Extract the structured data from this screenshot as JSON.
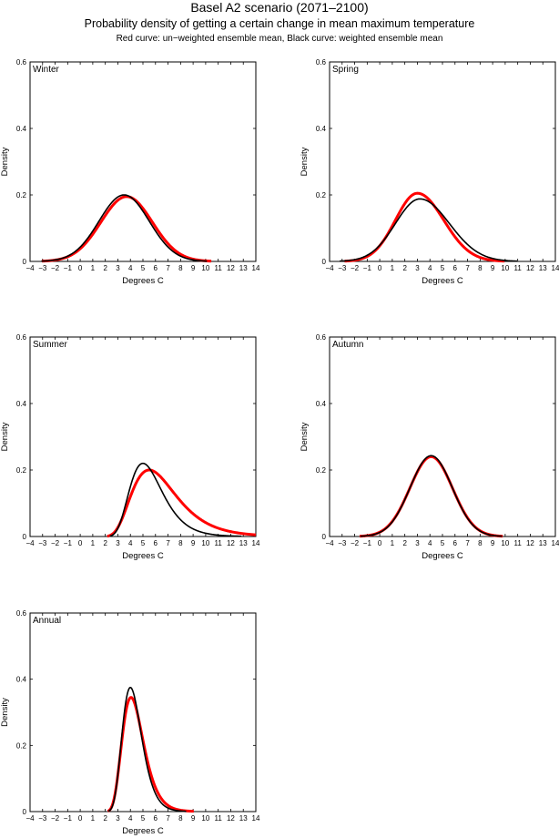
{
  "title": "Basel A2 scenario (2071–2100)",
  "subtitle": "Probability density of getting a certain change in mean maximum temperature",
  "legend_note": "Red curve: un−weighted ensemble mean, Black curve: weighted ensemble mean",
  "colors": {
    "unweighted": "#ff0000",
    "weighted": "#000000"
  },
  "chart_data": [
    {
      "type": "line",
      "label": "Winter",
      "xlabel": "Degrees C",
      "ylabel": "Density",
      "xlim": [
        -4,
        14
      ],
      "ylim": [
        0,
        0.6
      ],
      "xticks": [
        "−4",
        "−3",
        "−2",
        "−1",
        "0",
        "1",
        "2",
        "3",
        "4",
        "5",
        "6",
        "7",
        "8",
        "9",
        "10",
        "11",
        "12",
        "13",
        "14"
      ],
      "yticks": [
        "0",
        "0.2",
        "0.4",
        "0.6"
      ],
      "series": [
        {
          "name": "un-weighted ensemble mean",
          "color": "#ff0000",
          "dist": "normal",
          "mean": 3.7,
          "sd": 2.05,
          "peak": 0.195
        },
        {
          "name": "weighted ensemble mean",
          "color": "#000000",
          "dist": "normal",
          "mean": 3.5,
          "sd": 2.0,
          "peak": 0.2
        }
      ]
    },
    {
      "type": "line",
      "label": "Spring",
      "xlabel": "Degrees C",
      "ylabel": "Density",
      "xlim": [
        -4,
        14
      ],
      "ylim": [
        0,
        0.6
      ],
      "xticks": [
        "−4",
        "−3",
        "−2",
        "−1",
        "0",
        "1",
        "2",
        "3",
        "4",
        "5",
        "6",
        "7",
        "8",
        "9",
        "10",
        "11",
        "12",
        "13",
        "14"
      ],
      "yticks": [
        "0",
        "0.2",
        "0.4",
        "0.6"
      ],
      "series": [
        {
          "name": "un-weighted ensemble mean",
          "color": "#ff0000",
          "dist": "skew",
          "mode": 3.0,
          "sdl": 1.75,
          "sdr": 2.1,
          "peak": 0.205
        },
        {
          "name": "weighted ensemble mean",
          "color": "#000000",
          "dist": "skew",
          "mode": 3.2,
          "sdl": 1.95,
          "sdr": 2.35,
          "peak": 0.188
        }
      ]
    },
    {
      "type": "line",
      "label": "Summer",
      "xlabel": "Degrees C",
      "ylabel": "Density",
      "xlim": [
        -4,
        14
      ],
      "ylim": [
        0,
        0.6
      ],
      "xticks": [
        "−4",
        "−3",
        "−2",
        "−1",
        "0",
        "1",
        "2",
        "3",
        "4",
        "5",
        "6",
        "7",
        "8",
        "9",
        "10",
        "11",
        "12",
        "13",
        "14"
      ],
      "yticks": [
        "0",
        "0.2",
        "0.4",
        "0.6"
      ],
      "series": [
        {
          "name": "un-weighted ensemble mean",
          "color": "#ff0000",
          "dist": "lognormal",
          "mode": 5.5,
          "shift": 0.8,
          "sigma": 0.38,
          "peak": 0.2
        },
        {
          "name": "weighted ensemble mean",
          "color": "#000000",
          "dist": "lognormal",
          "mode": 5.0,
          "shift": 0.9,
          "sigma": 0.32,
          "peak": 0.22
        }
      ]
    },
    {
      "type": "line",
      "label": "Autumn",
      "xlabel": "Degrees C",
      "ylabel": "Density",
      "xlim": [
        -4,
        14
      ],
      "ylim": [
        0,
        0.6
      ],
      "xticks": [
        "−4",
        "−3",
        "−2",
        "−1",
        "0",
        "1",
        "2",
        "3",
        "4",
        "5",
        "6",
        "7",
        "8",
        "9",
        "10",
        "11",
        "12",
        "13",
        "14"
      ],
      "yticks": [
        "0",
        "0.2",
        "0.4",
        "0.6"
      ],
      "series": [
        {
          "name": "un-weighted ensemble mean",
          "color": "#ff0000",
          "dist": "normal",
          "mean": 4.1,
          "sd": 1.7,
          "peak": 0.24
        },
        {
          "name": "weighted ensemble mean",
          "color": "#000000",
          "dist": "normal",
          "mean": 4.1,
          "sd": 1.68,
          "peak": 0.243
        }
      ]
    },
    {
      "type": "line",
      "label": "Annual",
      "xlabel": "Degrees C",
      "ylabel": "Density",
      "xlim": [
        -4,
        14
      ],
      "ylim": [
        0,
        0.6
      ],
      "xticks": [
        "−4",
        "−3",
        "−2",
        "−1",
        "0",
        "1",
        "2",
        "3",
        "4",
        "5",
        "6",
        "7",
        "8",
        "9",
        "10",
        "11",
        "12",
        "13",
        "14"
      ],
      "yticks": [
        "0",
        "0.2",
        "0.4",
        "0.6"
      ],
      "series": [
        {
          "name": "un-weighted ensemble mean",
          "color": "#ff0000",
          "dist": "lognormal",
          "mode": 4.05,
          "shift": 1.0,
          "sigma": 0.28,
          "peak": 0.345
        },
        {
          "name": "weighted ensemble mean",
          "color": "#000000",
          "dist": "lognormal",
          "mode": 4.0,
          "shift": 1.0,
          "sigma": 0.26,
          "peak": 0.375
        }
      ]
    }
  ]
}
